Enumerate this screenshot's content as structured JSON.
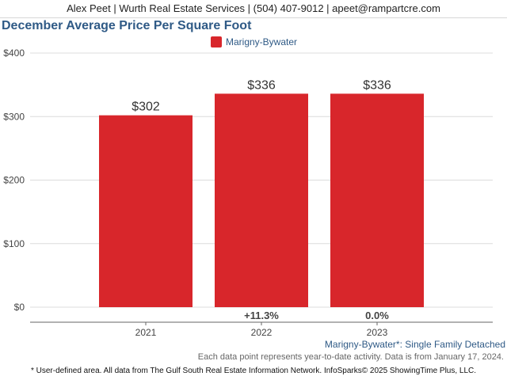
{
  "header": {
    "contact": "Alex Peet | Wurth Real Estate Services | (504) 407-9012 | apeet@rampartcre.com"
  },
  "chart_data": {
    "type": "bar",
    "title": "December Average Price Per Square Foot",
    "categories": [
      "2021",
      "2022",
      "2023"
    ],
    "series": [
      {
        "name": "Marigny-Bywater",
        "values": [
          302,
          336,
          336
        ],
        "color": "#d8262b"
      }
    ],
    "value_labels": [
      "$302",
      "$336",
      "$336"
    ],
    "change_labels": [
      "",
      "+11.3%",
      "0.0%"
    ],
    "ylim": [
      0,
      400
    ],
    "yticks": [
      0,
      100,
      200,
      300,
      400
    ],
    "ytick_labels": [
      "$0",
      "$100",
      "$200",
      "$300",
      "$400"
    ],
    "grid": true,
    "legend_position": "top-center"
  },
  "footer": {
    "area_label": "Marigny-Bywater*: Single Family Detached",
    "note": "Each data point represents year-to-date activity. Data is from January 17, 2024.",
    "source": "* User-defined area. All data from The Gulf South Real Estate Information Network. InfoSparks© 2025 ShowingTime Plus, LLC."
  }
}
